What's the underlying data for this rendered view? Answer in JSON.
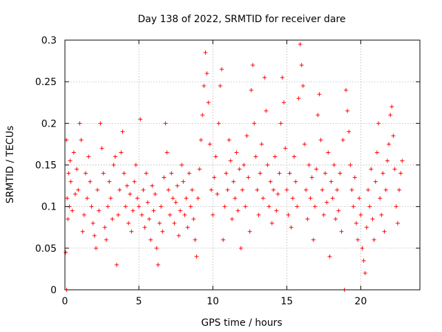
{
  "chart_data": {
    "type": "scatter",
    "title": "Day 138 of 2022, SRMTID for receiver dare",
    "xlabel": "GPS time / hours",
    "ylabel": "SRMTID / TECUs",
    "xlim": [
      0,
      24
    ],
    "ylim": [
      0,
      0.3
    ],
    "x_ticks": [
      0,
      5,
      10,
      15,
      20
    ],
    "x_tick_labels": [
      "0",
      "5",
      "10",
      "15",
      "20"
    ],
    "y_ticks": [
      0,
      0.05,
      0.1,
      0.15,
      0.2,
      0.25,
      0.3
    ],
    "y_tick_labels": [
      "0",
      "0.05",
      "0.1",
      "0.15",
      "0.2",
      "0.25",
      "0.3"
    ],
    "grid": true,
    "marker": "+",
    "color": "#ff0000",
    "series": [
      {
        "name": "SRMTID",
        "points": [
          [
            0.05,
            0.045
          ],
          [
            0.1,
            0.18
          ],
          [
            0.12,
            0.0
          ],
          [
            0.15,
            0.11
          ],
          [
            0.2,
            0.085
          ],
          [
            0.25,
            0.14
          ],
          [
            0.3,
            0.1
          ],
          [
            0.35,
            0.155
          ],
          [
            0.4,
            0.13
          ],
          [
            0.5,
            0.095
          ],
          [
            0.6,
            0.165
          ],
          [
            0.7,
            0.115
          ],
          [
            0.8,
            0.145
          ],
          [
            0.9,
            0.12
          ],
          [
            1.0,
            0.2
          ],
          [
            1.1,
            0.18
          ],
          [
            1.2,
            0.07
          ],
          [
            1.3,
            0.09
          ],
          [
            1.4,
            0.14
          ],
          [
            1.5,
            0.11
          ],
          [
            1.6,
            0.16
          ],
          [
            1.7,
            0.13
          ],
          [
            1.8,
            0.1
          ],
          [
            1.9,
            0.08
          ],
          [
            2.0,
            0.065
          ],
          [
            2.1,
            0.05
          ],
          [
            2.2,
            0.12
          ],
          [
            2.3,
            0.095
          ],
          [
            2.4,
            0.2
          ],
          [
            2.5,
            0.17
          ],
          [
            2.6,
            0.14
          ],
          [
            2.7,
            0.075
          ],
          [
            2.8,
            0.06
          ],
          [
            2.9,
            0.1
          ],
          [
            3.0,
            0.13
          ],
          [
            3.1,
            0.11
          ],
          [
            3.2,
            0.085
          ],
          [
            3.3,
            0.15
          ],
          [
            3.4,
            0.16
          ],
          [
            3.5,
            0.03
          ],
          [
            3.6,
            0.09
          ],
          [
            3.7,
            0.12
          ],
          [
            3.8,
            0.165
          ],
          [
            3.9,
            0.19
          ],
          [
            4.0,
            0.14
          ],
          [
            4.1,
            0.1
          ],
          [
            4.2,
            0.125
          ],
          [
            4.3,
            0.08
          ],
          [
            4.4,
            0.115
          ],
          [
            4.5,
            0.07
          ],
          [
            4.6,
            0.095
          ],
          [
            4.7,
            0.13
          ],
          [
            4.8,
            0.15
          ],
          [
            4.9,
            0.11
          ],
          [
            5.0,
            0.1
          ],
          [
            5.1,
            0.205
          ],
          [
            5.2,
            0.09
          ],
          [
            5.3,
            0.12
          ],
          [
            5.4,
            0.075
          ],
          [
            5.5,
            0.14
          ],
          [
            5.6,
            0.105
          ],
          [
            5.7,
            0.085
          ],
          [
            5.8,
            0.06
          ],
          [
            5.9,
            0.125
          ],
          [
            6.0,
            0.095
          ],
          [
            6.1,
            0.115
          ],
          [
            6.2,
            0.05
          ],
          [
            6.3,
            0.03
          ],
          [
            6.4,
            0.08
          ],
          [
            6.5,
            0.1
          ],
          [
            6.6,
            0.07
          ],
          [
            6.7,
            0.135
          ],
          [
            6.8,
            0.2
          ],
          [
            6.9,
            0.165
          ],
          [
            7.0,
            0.12
          ],
          [
            7.1,
            0.09
          ],
          [
            7.2,
            0.14
          ],
          [
            7.3,
            0.11
          ],
          [
            7.4,
            0.08
          ],
          [
            7.5,
            0.105
          ],
          [
            7.6,
            0.125
          ],
          [
            7.7,
            0.065
          ],
          [
            7.8,
            0.095
          ],
          [
            7.9,
            0.15
          ],
          [
            8.0,
            0.13
          ],
          [
            8.1,
            0.09
          ],
          [
            8.2,
            0.11
          ],
          [
            8.3,
            0.075
          ],
          [
            8.4,
            0.14
          ],
          [
            8.5,
            0.1
          ],
          [
            8.6,
            0.12
          ],
          [
            8.7,
            0.085
          ],
          [
            8.8,
            0.06
          ],
          [
            8.9,
            0.04
          ],
          [
            9.0,
            0.11
          ],
          [
            9.1,
            0.145
          ],
          [
            9.2,
            0.18
          ],
          [
            9.3,
            0.21
          ],
          [
            9.4,
            0.245
          ],
          [
            9.5,
            0.285
          ],
          [
            9.6,
            0.26
          ],
          [
            9.7,
            0.225
          ],
          [
            9.8,
            0.175
          ],
          [
            9.9,
            0.12
          ],
          [
            10.0,
            0.09
          ],
          [
            10.1,
            0.135
          ],
          [
            10.2,
            0.16
          ],
          [
            10.3,
            0.115
          ],
          [
            10.4,
            0.2
          ],
          [
            10.5,
            0.245
          ],
          [
            10.6,
            0.265
          ],
          [
            10.7,
            0.06
          ],
          [
            10.8,
            0.1
          ],
          [
            10.9,
            0.14
          ],
          [
            11.0,
            0.12
          ],
          [
            11.1,
            0.18
          ],
          [
            11.2,
            0.155
          ],
          [
            11.3,
            0.085
          ],
          [
            11.4,
            0.13
          ],
          [
            11.5,
            0.11
          ],
          [
            11.6,
            0.165
          ],
          [
            11.7,
            0.095
          ],
          [
            11.8,
            0.145
          ],
          [
            11.9,
            0.05
          ],
          [
            12.0,
            0.12
          ],
          [
            12.1,
            0.15
          ],
          [
            12.2,
            0.1
          ],
          [
            12.3,
            0.185
          ],
          [
            12.4,
            0.135
          ],
          [
            12.5,
            0.07
          ],
          [
            12.6,
            0.24
          ],
          [
            12.7,
            0.27
          ],
          [
            12.8,
            0.2
          ],
          [
            12.9,
            0.16
          ],
          [
            13.0,
            0.12
          ],
          [
            13.1,
            0.09
          ],
          [
            13.2,
            0.14
          ],
          [
            13.3,
            0.175
          ],
          [
            13.4,
            0.11
          ],
          [
            13.5,
            0.255
          ],
          [
            13.6,
            0.215
          ],
          [
            13.7,
            0.15
          ],
          [
            13.8,
            0.1
          ],
          [
            13.9,
            0.13
          ],
          [
            14.0,
            0.08
          ],
          [
            14.1,
            0.12
          ],
          [
            14.2,
            0.16
          ],
          [
            14.3,
            0.095
          ],
          [
            14.4,
            0.115
          ],
          [
            14.5,
            0.14
          ],
          [
            14.6,
            0.2
          ],
          [
            14.7,
            0.255
          ],
          [
            14.8,
            0.225
          ],
          [
            14.9,
            0.17
          ],
          [
            15.0,
            0.12
          ],
          [
            15.1,
            0.09
          ],
          [
            15.2,
            0.14
          ],
          [
            15.3,
            0.075
          ],
          [
            15.4,
            0.11
          ],
          [
            15.5,
            0.16
          ],
          [
            15.6,
            0.13
          ],
          [
            15.7,
            0.1
          ],
          [
            15.8,
            0.23
          ],
          [
            15.9,
            0.295
          ],
          [
            16.0,
            0.27
          ],
          [
            16.1,
            0.245
          ],
          [
            16.2,
            0.175
          ],
          [
            16.3,
            0.12
          ],
          [
            16.4,
            0.085
          ],
          [
            16.5,
            0.15
          ],
          [
            16.6,
            0.11
          ],
          [
            16.7,
            0.135
          ],
          [
            16.8,
            0.06
          ],
          [
            16.9,
            0.1
          ],
          [
            17.0,
            0.145
          ],
          [
            17.1,
            0.21
          ],
          [
            17.2,
            0.235
          ],
          [
            17.3,
            0.18
          ],
          [
            17.4,
            0.12
          ],
          [
            17.5,
            0.09
          ],
          [
            17.6,
            0.14
          ],
          [
            17.7,
            0.105
          ],
          [
            17.8,
            0.165
          ],
          [
            17.9,
            0.04
          ],
          [
            18.0,
            0.13
          ],
          [
            18.1,
            0.11
          ],
          [
            18.2,
            0.15
          ],
          [
            18.3,
            0.085
          ],
          [
            18.4,
            0.12
          ],
          [
            18.5,
            0.095
          ],
          [
            18.6,
            0.14
          ],
          [
            18.7,
            0.07
          ],
          [
            18.8,
            0.18
          ],
          [
            18.9,
            0.0
          ],
          [
            19.0,
            0.24
          ],
          [
            19.1,
            0.215
          ],
          [
            19.2,
            0.19
          ],
          [
            19.3,
            0.15
          ],
          [
            19.4,
            0.12
          ],
          [
            19.5,
            0.1
          ],
          [
            19.6,
            0.135
          ],
          [
            19.7,
            0.08
          ],
          [
            19.8,
            0.06
          ],
          [
            19.9,
            0.11
          ],
          [
            20.0,
            0.09
          ],
          [
            20.1,
            0.05
          ],
          [
            20.2,
            0.035
          ],
          [
            20.3,
            0.02
          ],
          [
            20.4,
            0.075
          ],
          [
            20.5,
            0.12
          ],
          [
            20.6,
            0.1
          ],
          [
            20.7,
            0.145
          ],
          [
            20.8,
            0.085
          ],
          [
            20.9,
            0.06
          ],
          [
            21.0,
            0.13
          ],
          [
            21.1,
            0.165
          ],
          [
            21.2,
            0.2
          ],
          [
            21.3,
            0.11
          ],
          [
            21.4,
            0.09
          ],
          [
            21.5,
            0.14
          ],
          [
            21.6,
            0.07
          ],
          [
            21.7,
            0.12
          ],
          [
            21.8,
            0.155
          ],
          [
            21.9,
            0.175
          ],
          [
            22.0,
            0.21
          ],
          [
            22.1,
            0.22
          ],
          [
            22.2,
            0.185
          ],
          [
            22.3,
            0.145
          ],
          [
            22.4,
            0.1
          ],
          [
            22.5,
            0.08
          ],
          [
            22.6,
            0.12
          ],
          [
            22.7,
            0.14
          ],
          [
            22.8,
            0.155
          ]
        ]
      }
    ]
  }
}
